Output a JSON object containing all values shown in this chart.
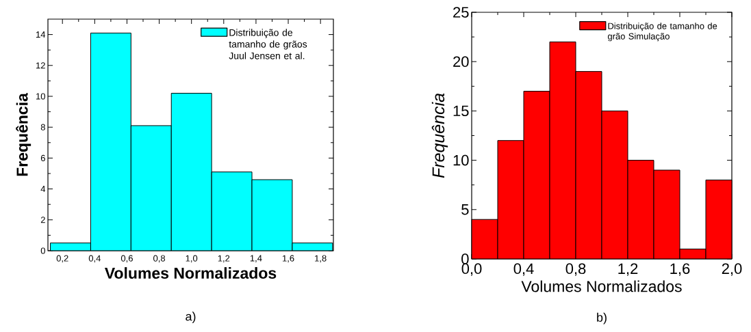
{
  "chart_data": [
    {
      "type": "histogram",
      "xlabel": "Volumes Normalizados",
      "ylabel": "Frequência",
      "annotations": [
        "a)"
      ],
      "bins": [
        0.125,
        0.375,
        0.625,
        0.875,
        1.125,
        1.375,
        1.625,
        1.875
      ],
      "series": [
        {
          "name": "Distribuição de tamanho de grãos Juul Jensen et al.",
          "color": "#00ffff",
          "values": [
            0.5,
            14.1,
            8.1,
            10.2,
            5.1,
            4.6,
            0.5
          ]
        }
      ],
      "xlim": [
        0.11,
        1.88
      ],
      "ylim": [
        0,
        15
      ],
      "xticks": [
        {
          "value": 0.2,
          "label": "0,2"
        },
        {
          "value": 0.4,
          "label": "0,4"
        },
        {
          "value": 0.6,
          "label": "0,6"
        },
        {
          "value": 0.8,
          "label": "0,8"
        },
        {
          "value": 1.0,
          "label": "1,0"
        },
        {
          "value": 1.2,
          "label": "1,2"
        },
        {
          "value": 1.4,
          "label": "1,4"
        },
        {
          "value": 1.6,
          "label": "1,6"
        },
        {
          "value": 1.8,
          "label": "1,8"
        }
      ],
      "yticks": [
        0,
        2,
        4,
        6,
        8,
        10,
        12,
        14
      ],
      "legend": "top right"
    },
    {
      "type": "histogram",
      "xlabel": "Volumes Normalizados",
      "ylabel": "Frequência",
      "annotations": [
        "b)"
      ],
      "bins": [
        0.0,
        0.2,
        0.4,
        0.6,
        0.8,
        1.0,
        1.2,
        1.4,
        1.6,
        1.8,
        2.0
      ],
      "series": [
        {
          "name": "Distribuição de tamanho de grão Simulação",
          "color": "#ff0000",
          "values": [
            4,
            12,
            17,
            22,
            19,
            15,
            10,
            9,
            1,
            8
          ]
        }
      ],
      "xlim": [
        0.0,
        2.0
      ],
      "ylim": [
        0,
        25
      ],
      "xticks": [
        {
          "value": 0.0,
          "label": "0,0"
        },
        {
          "value": 0.4,
          "label": "0,4"
        },
        {
          "value": 0.8,
          "label": "0,8"
        },
        {
          "value": 1.2,
          "label": "1,2"
        },
        {
          "value": 1.6,
          "label": "1,6"
        },
        {
          "value": 2.0,
          "label": "2,0"
        }
      ],
      "yticks": [
        0,
        5,
        10,
        15,
        20,
        25
      ],
      "legend": "top right"
    }
  ]
}
